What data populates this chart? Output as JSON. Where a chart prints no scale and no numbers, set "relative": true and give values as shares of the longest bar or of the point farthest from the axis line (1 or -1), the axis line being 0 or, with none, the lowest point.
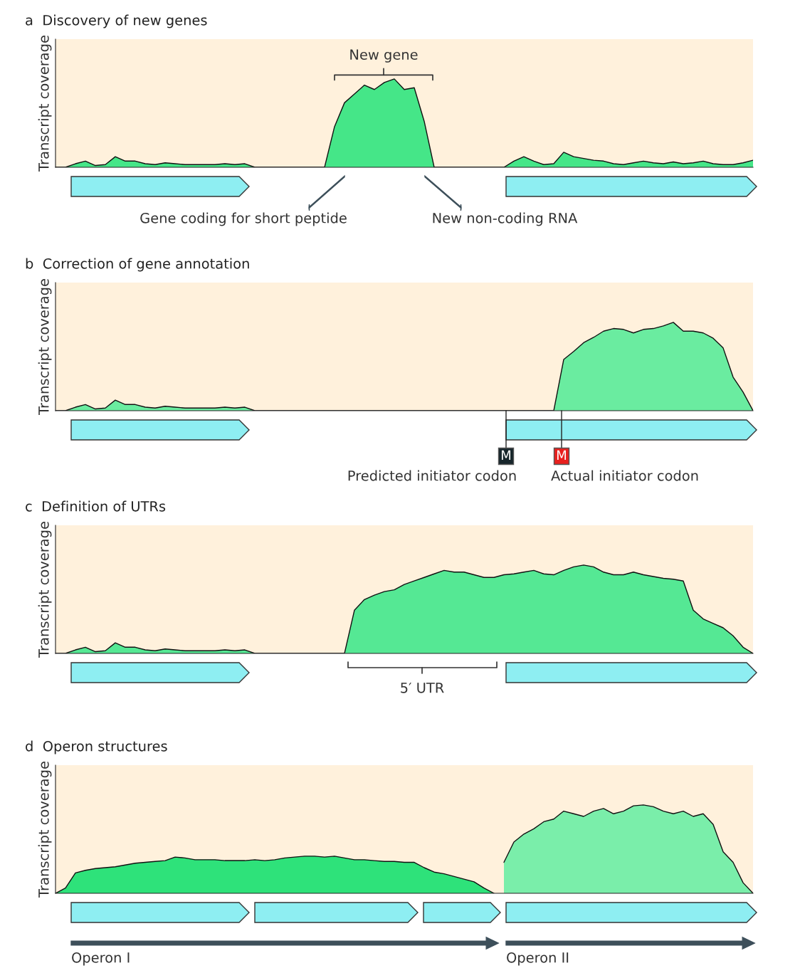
{
  "chart_data": [
    {
      "type": "area",
      "title": "a  Discovery of new genes",
      "ylabel": "Transcript coverage",
      "relative": true,
      "categories": [
        null,
        null,
        null,
        null,
        null,
        null,
        null,
        null,
        null,
        null,
        null,
        null,
        null,
        null,
        null,
        null,
        null,
        null,
        null,
        null,
        null,
        null,
        null,
        null,
        null,
        null,
        null,
        null,
        null,
        null,
        null,
        null,
        null,
        null,
        null,
        null,
        null,
        null,
        null,
        null,
        null,
        null,
        null,
        null,
        null,
        null,
        null,
        null,
        null,
        null,
        null,
        null,
        null,
        null,
        null,
        null,
        null,
        null,
        null,
        null,
        null,
        null,
        null,
        null,
        null,
        null,
        null,
        null,
        null,
        null,
        null
      ],
      "series": [
        {
          "color": "#45e688",
          "values": [
            0,
            0,
            0.04,
            0.07,
            0.02,
            0.03,
            0.12,
            0.07,
            0.07,
            0.04,
            0.03,
            0.05,
            0.04,
            0.03,
            0.03,
            0.03,
            0.03,
            0.04,
            0.03,
            0.04,
            0,
            0,
            0,
            0,
            0,
            0,
            0,
            0,
            0.46,
            0.73,
            0.83,
            0.93,
            0.88,
            0.96,
            1,
            0.88,
            0.9,
            0.52,
            0,
            0,
            0,
            0,
            0,
            0,
            0,
            0,
            0.07,
            0.12,
            0.07,
            0.03,
            0.04,
            0.17,
            0.12,
            0.1,
            0.08,
            0.07,
            0.04,
            0.03,
            0.05,
            0.07,
            0.05,
            0.04,
            0.06,
            0.04,
            0.05,
            0.07,
            0.04,
            0.03,
            0.03,
            0.05,
            0.08
          ]
        }
      ],
      "annotations": [
        "New gene",
        "Gene coding for short peptide",
        "New non-coding RNA"
      ]
    },
    {
      "type": "area",
      "title": "b  Correction of gene annotation",
      "ylabel": "Transcript coverage",
      "relative": true,
      "categories": [
        null,
        null,
        null,
        null,
        null,
        null,
        null,
        null,
        null,
        null,
        null,
        null,
        null,
        null,
        null,
        null,
        null,
        null,
        null,
        null,
        null,
        null,
        null,
        null,
        null,
        null,
        null,
        null,
        null,
        null,
        null,
        null,
        null,
        null,
        null,
        null,
        null,
        null,
        null,
        null,
        null,
        null,
        null,
        null,
        null,
        null,
        null,
        null,
        null,
        null,
        null,
        null,
        null,
        null,
        null,
        null,
        null,
        null,
        null,
        null,
        null,
        null,
        null,
        null,
        null,
        null,
        null,
        null,
        null,
        null,
        null
      ],
      "series": [
        {
          "color": "#6aeca0",
          "values": [
            0,
            0,
            0.04,
            0.07,
            0.02,
            0.03,
            0.12,
            0.07,
            0.07,
            0.04,
            0.03,
            0.05,
            0.04,
            0.03,
            0.03,
            0.03,
            0.03,
            0.04,
            0.03,
            0.04,
            0,
            0,
            0,
            0,
            0,
            0,
            0,
            0,
            0,
            0,
            0,
            0,
            0,
            0,
            0,
            0,
            0,
            0,
            0,
            0,
            0,
            0,
            0,
            0,
            0,
            0,
            0,
            0,
            0,
            0,
            0,
            0.58,
            0.67,
            0.77,
            0.83,
            0.9,
            0.93,
            0.92,
            0.88,
            0.92,
            0.93,
            0.96,
            1,
            0.9,
            0.9,
            0.88,
            0.82,
            0.71,
            0.38,
            0.21,
            0
          ]
        }
      ],
      "annotations": [
        "M",
        "M",
        "Predicted initiator codon",
        "Actual initiator codon"
      ]
    },
    {
      "type": "area",
      "title": "c  Definition of UTRs",
      "ylabel": "Transcript coverage",
      "relative": true,
      "categories": [
        null,
        null,
        null,
        null,
        null,
        null,
        null,
        null,
        null,
        null,
        null,
        null,
        null,
        null,
        null,
        null,
        null,
        null,
        null,
        null,
        null,
        null,
        null,
        null,
        null,
        null,
        null,
        null,
        null,
        null,
        null,
        null,
        null,
        null,
        null,
        null,
        null,
        null,
        null,
        null,
        null,
        null,
        null,
        null,
        null,
        null,
        null,
        null,
        null,
        null,
        null,
        null,
        null,
        null,
        null,
        null,
        null,
        null,
        null,
        null,
        null,
        null,
        null,
        null,
        null,
        null,
        null,
        null,
        null,
        null,
        null
      ],
      "series": [
        {
          "color": "#55e894",
          "values": [
            0,
            0,
            0.04,
            0.07,
            0.02,
            0.03,
            0.12,
            0.07,
            0.07,
            0.04,
            0.03,
            0.05,
            0.04,
            0.03,
            0.03,
            0.03,
            0.03,
            0.04,
            0.03,
            0.04,
            0,
            0,
            0,
            0,
            0,
            0,
            0,
            0,
            0,
            0,
            0.49,
            0.61,
            0.66,
            0.7,
            0.72,
            0.78,
            0.82,
            0.86,
            0.9,
            0.94,
            0.92,
            0.92,
            0.89,
            0.86,
            0.86,
            0.89,
            0.9,
            0.92,
            0.94,
            0.9,
            0.89,
            0.94,
            0.98,
            1,
            0.98,
            0.92,
            0.89,
            0.89,
            0.92,
            0.89,
            0.87,
            0.85,
            0.84,
            0.82,
            0.49,
            0.39,
            0.34,
            0.29,
            0.2,
            0.07,
            0
          ]
        }
      ],
      "annotations": [
        "5′ UTR"
      ]
    },
    {
      "type": "area",
      "title": "d  Operon structures",
      "ylabel": "Transcript coverage",
      "relative": true,
      "categories": [
        null,
        null,
        null,
        null,
        null,
        null,
        null,
        null,
        null,
        null,
        null,
        null,
        null,
        null,
        null,
        null,
        null,
        null,
        null,
        null,
        null,
        null,
        null,
        null,
        null,
        null,
        null,
        null,
        null,
        null,
        null,
        null,
        null,
        null,
        null,
        null,
        null,
        null,
        null,
        null,
        null,
        null,
        null,
        null,
        null,
        null,
        null,
        null,
        null,
        null,
        null,
        null,
        null,
        null,
        null,
        null,
        null,
        null,
        null,
        null,
        null,
        null,
        null,
        null,
        null,
        null,
        null,
        null,
        null,
        null,
        null
      ],
      "series": [
        {
          "color": "#2ee27a",
          "values": [
            0,
            0.06,
            0.23,
            0.26,
            0.28,
            0.29,
            0.3,
            0.32,
            0.34,
            0.35,
            0.36,
            0.37,
            0.41,
            0.4,
            0.38,
            0.38,
            0.38,
            0.37,
            0.37,
            0.37,
            0.38,
            0.37,
            0.38,
            0.4,
            0.41,
            0.42,
            0.42,
            0.41,
            0.42,
            0.4,
            0.38,
            0.38,
            0.37,
            0.36,
            0.36,
            0.35,
            0.35,
            0.29,
            0.24,
            0.22,
            0.19,
            0.16,
            0.13,
            0.06,
            0,
            null,
            null,
            null,
            null,
            null,
            null,
            null,
            null,
            null,
            null,
            null,
            null,
            null,
            null,
            null,
            null,
            null,
            null,
            null,
            null,
            null,
            null,
            null,
            null,
            null,
            null
          ]
        },
        {
          "color": "#7aeeaa",
          "values": [
            null,
            null,
            null,
            null,
            null,
            null,
            null,
            null,
            null,
            null,
            null,
            null,
            null,
            null,
            null,
            null,
            null,
            null,
            null,
            null,
            null,
            null,
            null,
            null,
            null,
            null,
            null,
            null,
            null,
            null,
            null,
            null,
            null,
            null,
            null,
            null,
            null,
            null,
            null,
            null,
            null,
            null,
            null,
            null,
            null,
            0.35,
            0.58,
            0.67,
            0.73,
            0.81,
            0.84,
            0.93,
            0.9,
            0.87,
            0.93,
            0.96,
            0.9,
            0.93,
            0.99,
            1,
            0.98,
            0.93,
            0.9,
            0.93,
            0.87,
            0.9,
            0.78,
            0.47,
            0.35,
            0.12,
            0
          ]
        }
      ],
      "annotations": [
        "Operon I",
        "Operon II"
      ]
    }
  ]
}
